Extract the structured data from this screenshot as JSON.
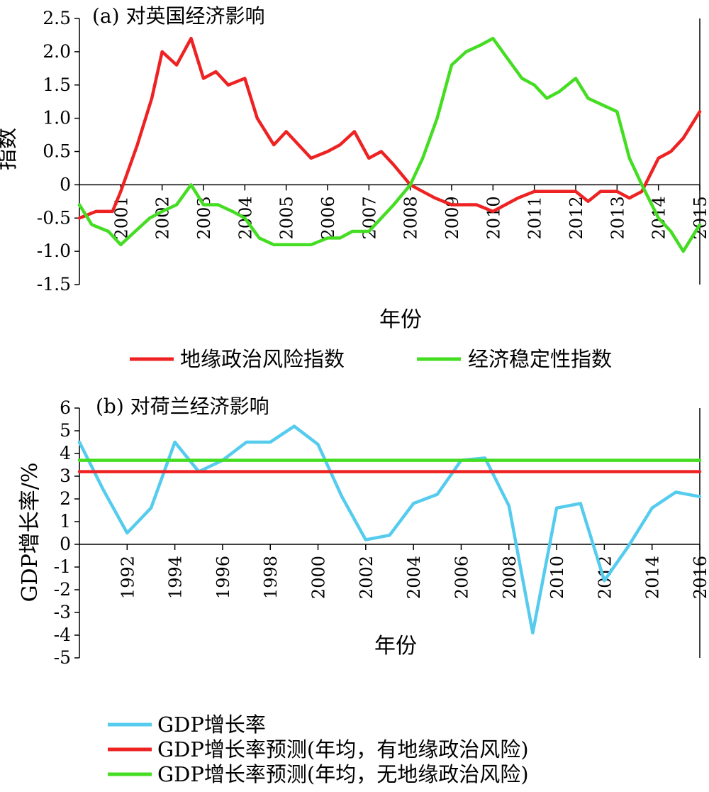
{
  "chart_data": [
    {
      "type": "line",
      "title": "(a) 对英国经济影响",
      "xlabel": "年份",
      "ylabel": "指数",
      "ylim": [
        -1.5,
        2.5
      ],
      "yticks": [
        2.5,
        2.0,
        1.5,
        1.0,
        0.5,
        0,
        -0.5,
        -1.0,
        -1.5
      ],
      "ytick_labels": [
        "2.5",
        "2.0",
        "1.5",
        "1.0",
        "0.5",
        "0",
        "-0.5",
        "-1.0",
        "-1.5"
      ],
      "xlim": [
        2000,
        2015
      ],
      "xticks": [
        2001,
        2002,
        2003,
        2004,
        2005,
        2006,
        2007,
        2008,
        2009,
        2010,
        2011,
        2012,
        2013,
        2014,
        2015
      ],
      "xtick_labels": [
        "2001",
        "2002",
        "2003",
        "2004",
        "2005",
        "2006",
        "2007",
        "2008",
        "2009",
        "2010",
        "2011",
        "2012",
        "2013",
        "2014",
        "2015"
      ],
      "legend_position": "below",
      "series": [
        {
          "name": "地缘政治风险指数",
          "color": "#ee2222",
          "x": [
            2000.0,
            2000.2,
            2000.4,
            2000.6,
            2000.8,
            2001.0,
            2001.4,
            2001.75,
            2002.0,
            2002.35,
            2002.7,
            2003.0,
            2003.3,
            2003.6,
            2004.0,
            2004.3,
            2004.7,
            2005.0,
            2005.3,
            2005.6,
            2006.0,
            2006.3,
            2006.65,
            2007.0,
            2007.3,
            2007.6,
            2008.0,
            2008.3,
            2008.6,
            2009.0,
            2009.3,
            2009.6,
            2010.0,
            2010.3,
            2010.6,
            2011.0,
            2011.3,
            2011.6,
            2012.0,
            2012.3,
            2012.6,
            2013.0,
            2013.3,
            2013.6,
            2014.0,
            2014.3,
            2014.6,
            2015.0
          ],
          "y": [
            -0.5,
            -0.45,
            -0.4,
            -0.4,
            -0.4,
            -0.1,
            0.6,
            1.3,
            2.0,
            1.8,
            2.2,
            1.6,
            1.7,
            1.5,
            1.6,
            1.0,
            0.6,
            0.8,
            0.6,
            0.4,
            0.5,
            0.6,
            0.8,
            0.4,
            0.5,
            0.3,
            0.0,
            -0.1,
            -0.2,
            -0.3,
            -0.3,
            -0.3,
            -0.4,
            -0.3,
            -0.2,
            -0.1,
            -0.1,
            -0.1,
            -0.1,
            -0.25,
            -0.1,
            -0.1,
            -0.2,
            -0.1,
            0.4,
            0.5,
            0.7,
            1.1
          ]
        },
        {
          "name": "经济稳定性指数",
          "color": "#44dd22",
          "x": [
            2000.0,
            2000.3,
            2000.7,
            2001.0,
            2001.35,
            2001.7,
            2002.0,
            2002.35,
            2002.7,
            2003.0,
            2003.35,
            2003.7,
            2004.0,
            2004.35,
            2004.7,
            2005.0,
            2005.3,
            2005.6,
            2006.0,
            2006.3,
            2006.6,
            2007.0,
            2007.3,
            2007.6,
            2008.0,
            2008.3,
            2008.65,
            2009.0,
            2009.35,
            2009.7,
            2010.0,
            2010.35,
            2010.7,
            2011.0,
            2011.3,
            2011.6,
            2012.0,
            2012.3,
            2012.65,
            2013.0,
            2013.3,
            2013.6,
            2014.0,
            2014.3,
            2014.6,
            2015.0
          ],
          "y": [
            -0.3,
            -0.6,
            -0.7,
            -0.9,
            -0.7,
            -0.5,
            -0.4,
            -0.3,
            0.0,
            -0.3,
            -0.3,
            -0.4,
            -0.5,
            -0.8,
            -0.9,
            -0.9,
            -0.9,
            -0.9,
            -0.8,
            -0.8,
            -0.7,
            -0.7,
            -0.5,
            -0.3,
            0.0,
            0.4,
            1.0,
            1.8,
            2.0,
            2.1,
            2.2,
            1.9,
            1.6,
            1.5,
            1.3,
            1.4,
            1.6,
            1.3,
            1.2,
            1.1,
            0.4,
            0.0,
            -0.5,
            -0.7,
            -1.0,
            -0.6
          ]
        }
      ]
    },
    {
      "type": "line",
      "title": "(b) 对荷兰经济影响",
      "xlabel": "年份",
      "ylabel": "GDP增长率/%",
      "ylim": [
        -5,
        6
      ],
      "yticks": [
        6,
        5,
        4,
        3,
        2,
        1,
        0,
        -1,
        -2,
        -3,
        -4,
        -5
      ],
      "ytick_labels": [
        "6",
        "5",
        "4",
        "3",
        "2",
        "1",
        "0",
        "-1",
        "-2",
        "-3",
        "-4",
        "-5"
      ],
      "xlim": [
        1990,
        2016
      ],
      "xticks": [
        1992,
        1994,
        1996,
        1998,
        2000,
        2002,
        2004,
        2006,
        2008,
        2010,
        2012,
        2014,
        2016
      ],
      "xtick_labels": [
        "1992",
        "1994",
        "1996",
        "1998",
        "2000",
        "2002",
        "2004",
        "2006",
        "2008",
        "2010",
        "2012",
        "2014",
        "2016"
      ],
      "legend_position": "below",
      "series": [
        {
          "name": "GDP增长率",
          "color": "#55ccee",
          "x": [
            1990,
            1991,
            1992,
            1993,
            1994,
            1995,
            1996,
            1997,
            1998,
            1999,
            2000,
            2001,
            2002,
            2003,
            2004,
            2005,
            2006,
            2007,
            2008,
            2009,
            2010,
            2011,
            2012,
            2013,
            2014,
            2015,
            2016
          ],
          "y": [
            4.5,
            2.4,
            0.5,
            1.6,
            4.5,
            3.2,
            3.7,
            4.5,
            4.5,
            5.2,
            4.4,
            2.1,
            0.2,
            0.4,
            1.8,
            2.2,
            3.7,
            3.8,
            1.7,
            -3.9,
            1.6,
            1.8,
            -1.6,
            -0.1,
            1.6,
            2.3,
            2.1
          ]
        },
        {
          "name": "GDP增长率预测(年均，有地缘政治风险)",
          "color": "#ee2222",
          "x": [
            1990,
            2016
          ],
          "y": [
            3.2,
            3.2
          ]
        },
        {
          "name": "GDP增长率预测(年均，无地缘政治风险)",
          "color": "#44dd22",
          "x": [
            1990,
            2016
          ],
          "y": [
            3.7,
            3.7
          ]
        }
      ]
    }
  ]
}
